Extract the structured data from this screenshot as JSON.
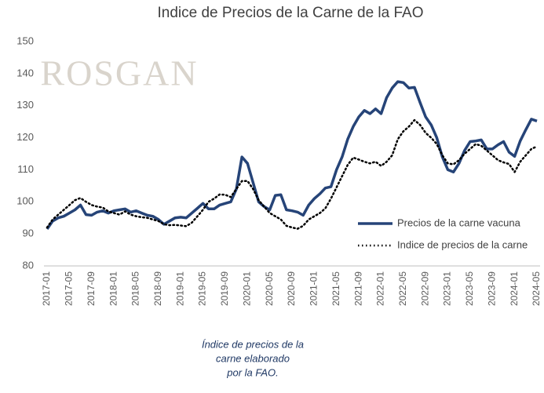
{
  "chart_data": {
    "type": "line",
    "title": "Indice de Precios de la Carne de la FAO",
    "watermark": "ROSGAN",
    "caption": [
      "Índice de precios de la",
      "carne elaborado",
      "por la FAO."
    ],
    "categories": [
      "2017-01",
      null,
      null,
      null,
      "2017-05",
      null,
      null,
      null,
      "2017-09",
      null,
      null,
      null,
      "2018-01",
      null,
      null,
      null,
      "2018-05",
      null,
      null,
      null,
      "2018-09",
      null,
      null,
      null,
      "2019-01",
      null,
      null,
      null,
      "2019-05",
      null,
      null,
      null,
      "2019-09",
      null,
      null,
      null,
      "2020-01",
      null,
      null,
      null,
      "2020-05",
      null,
      null,
      null,
      "2020-09",
      null,
      null,
      null,
      "2021-01",
      null,
      null,
      null,
      "2021-05",
      null,
      null,
      null,
      "2021-09",
      null,
      null,
      null,
      "2022-01",
      null,
      null,
      null,
      "2022-05",
      null,
      null,
      null,
      "2022-09",
      null,
      null,
      null,
      "2023-01",
      null,
      null,
      null,
      "2023-05",
      null,
      null,
      null,
      "2023-09",
      null,
      null,
      null,
      "2024-01",
      null,
      null,
      null,
      "2024-05"
    ],
    "series": [
      {
        "name": "Precios de la carne vacuna",
        "color": "#264478",
        "style": "solid",
        "values": [
          91.5,
          94,
          95,
          95.5,
          96.5,
          97.5,
          99,
          96,
          95.8,
          96.8,
          97.2,
          96.5,
          97.2,
          97.5,
          97.8,
          96.8,
          97.2,
          96.5,
          95.8,
          95.5,
          94.5,
          93,
          94,
          95,
          95.2,
          95,
          96.5,
          98,
          99.5,
          97.8,
          97.8,
          99,
          99.5,
          100,
          104,
          114,
          112,
          106,
          100,
          98.5,
          97.5,
          102,
          102.2,
          97.5,
          97.2,
          96.8,
          95.8,
          99,
          101,
          102.5,
          104.3,
          104.7,
          110,
          114,
          119.5,
          123.5,
          126.5,
          128.5,
          127.5,
          129,
          127.5,
          132.5,
          135.5,
          137.5,
          137.2,
          135.5,
          135.7,
          131,
          126.5,
          124,
          120,
          114,
          110,
          109.3,
          112,
          116,
          118.8,
          119,
          119.3,
          116.5,
          116.5,
          117.8,
          118.8,
          115.5,
          114.2,
          119,
          122.5,
          125.8,
          125.2
        ]
      },
      {
        "name": "Indice de precios de la carne",
        "color": "#000000",
        "style": "dotted",
        "values": [
          92,
          94.5,
          96,
          97.5,
          99,
          100.5,
          101.2,
          100,
          99,
          98.5,
          98.2,
          97,
          96.5,
          96,
          97,
          96,
          95.5,
          95.2,
          95,
          94.5,
          94,
          93,
          92.7,
          92.8,
          92.6,
          92.4,
          93.5,
          95.5,
          97.5,
          100,
          101,
          102.3,
          102.2,
          101.5,
          104,
          106.5,
          106.5,
          104,
          100.5,
          98.5,
          96.5,
          95.5,
          94.5,
          92.5,
          92,
          91.6,
          92.5,
          94.5,
          95.5,
          96.5,
          98,
          101,
          104.5,
          108,
          111.5,
          113.8,
          113.2,
          112.5,
          112,
          112.5,
          111.2,
          112.5,
          114.5,
          119.5,
          122,
          123.5,
          125.5,
          124,
          121.5,
          120,
          118,
          114.5,
          112,
          111.7,
          113,
          115,
          116.5,
          118,
          117.5,
          116,
          114.5,
          113,
          112.3,
          111.8,
          109.3,
          112.5,
          114.5,
          116.5,
          117.3
        ]
      }
    ],
    "ylim": [
      80,
      150
    ],
    "yticks": [
      80,
      90,
      100,
      110,
      120,
      130,
      140,
      150
    ],
    "grid": false,
    "legend": "right"
  }
}
